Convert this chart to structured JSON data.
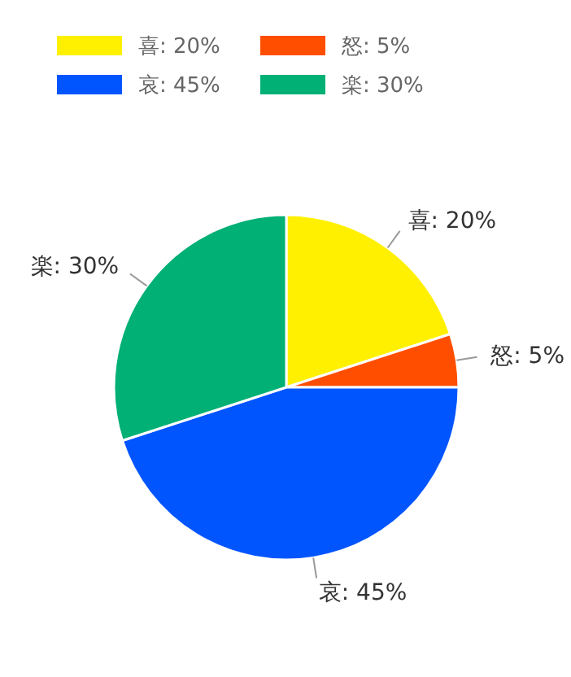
{
  "chart_data": {
    "type": "pie",
    "categories": [
      "喜",
      "怒",
      "哀",
      "楽"
    ],
    "values": [
      20,
      5,
      45,
      30
    ],
    "value_labels": [
      "20%",
      "5%",
      "45%",
      "30%"
    ],
    "colors": [
      "#fff000",
      "#ff4e00",
      "#0055ff",
      "#00b074"
    ],
    "legend": "top left"
  }
}
